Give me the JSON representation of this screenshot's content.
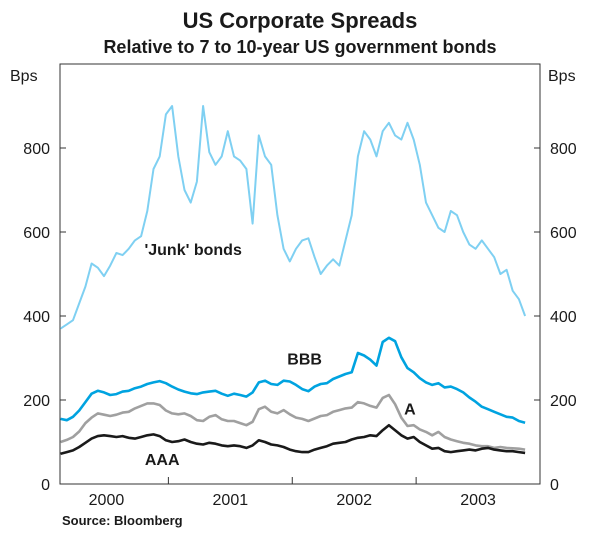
{
  "chart_data": {
    "type": "line",
    "title": "US Corporate Spreads",
    "subtitle": "Relative to 7 to 10-year US government bonds",
    "ylabel_left": "Bps",
    "ylabel_right": "Bps",
    "source": "Source: Bloomberg",
    "ylim": [
      0,
      1000
    ],
    "yticks": [
      0,
      200,
      400,
      600,
      800
    ],
    "xlim": [
      1999.625,
      2003.5
    ],
    "xticks": [
      {
        "label": "2000",
        "x": 2000.0
      },
      {
        "label": "2001",
        "x": 2001.0
      },
      {
        "label": "2002",
        "x": 2002.0
      },
      {
        "label": "2003",
        "x": 2003.0
      }
    ],
    "year_dividers": [
      1999.625,
      2000.5,
      2001.5,
      2002.5,
      2003.5
    ],
    "colors": {
      "junk": "#7fd0f2",
      "bbb": "#00a3e0",
      "a": "#a0a0a0",
      "aaa": "#1a1a1a",
      "frame": "#333333"
    },
    "series": [
      {
        "name": "'Junk' bonds",
        "key": "junk",
        "x": [
          1999.63,
          1999.68,
          1999.73,
          1999.78,
          1999.83,
          1999.88,
          1999.93,
          1999.98,
          2000.03,
          2000.08,
          2000.13,
          2000.18,
          2000.23,
          2000.28,
          2000.33,
          2000.38,
          2000.43,
          2000.48,
          2000.53,
          2000.58,
          2000.63,
          2000.68,
          2000.73,
          2000.78,
          2000.83,
          2000.88,
          2000.93,
          2000.98,
          2001.03,
          2001.08,
          2001.13,
          2001.18,
          2001.23,
          2001.28,
          2001.33,
          2001.38,
          2001.43,
          2001.48,
          2001.53,
          2001.58,
          2001.63,
          2001.68,
          2001.73,
          2001.78,
          2001.83,
          2001.88,
          2001.93,
          2001.98,
          2002.03,
          2002.08,
          2002.13,
          2002.18,
          2002.23,
          2002.28,
          2002.33,
          2002.38,
          2002.43,
          2002.48,
          2002.53,
          2002.58,
          2002.63,
          2002.68,
          2002.73,
          2002.78,
          2002.83,
          2002.88,
          2002.93,
          2002.98,
          2003.03,
          2003.08,
          2003.13,
          2003.18,
          2003.23,
          2003.28,
          2003.33,
          2003.38
        ],
        "values": [
          370,
          380,
          390,
          430,
          470,
          525,
          515,
          495,
          520,
          550,
          545,
          560,
          580,
          590,
          650,
          750,
          780,
          880,
          900,
          780,
          700,
          670,
          720,
          900,
          790,
          760,
          780,
          840,
          780,
          770,
          750,
          620,
          830,
          780,
          760,
          640,
          560,
          530,
          560,
          580,
          585,
          540,
          500,
          520,
          535,
          520,
          580,
          640,
          780,
          840,
          820,
          780,
          840,
          860,
          830,
          820,
          860,
          820,
          760,
          670,
          640,
          610,
          600,
          650,
          640,
          600,
          570,
          560,
          580,
          560,
          540,
          500,
          510,
          460,
          440,
          400
        ]
      },
      {
        "name": "BBB",
        "key": "bbb",
        "x": [
          1999.63,
          1999.68,
          1999.73,
          1999.78,
          1999.83,
          1999.88,
          1999.93,
          1999.98,
          2000.03,
          2000.08,
          2000.13,
          2000.18,
          2000.23,
          2000.28,
          2000.33,
          2000.38,
          2000.43,
          2000.48,
          2000.53,
          2000.58,
          2000.63,
          2000.68,
          2000.73,
          2000.78,
          2000.83,
          2000.88,
          2000.93,
          2000.98,
          2001.03,
          2001.08,
          2001.13,
          2001.18,
          2001.23,
          2001.28,
          2001.33,
          2001.38,
          2001.43,
          2001.48,
          2001.53,
          2001.58,
          2001.63,
          2001.68,
          2001.73,
          2001.78,
          2001.83,
          2001.88,
          2001.93,
          2001.98,
          2002.03,
          2002.08,
          2002.13,
          2002.18,
          2002.23,
          2002.28,
          2002.33,
          2002.38,
          2002.43,
          2002.48,
          2002.53,
          2002.58,
          2002.63,
          2002.68,
          2002.73,
          2002.78,
          2002.83,
          2002.88,
          2002.93,
          2002.98,
          2003.03,
          2003.08,
          2003.13,
          2003.18,
          2003.23,
          2003.28,
          2003.33,
          2003.38
        ],
        "values": [
          155,
          152,
          160,
          175,
          195,
          215,
          222,
          218,
          212,
          214,
          220,
          222,
          228,
          232,
          238,
          242,
          245,
          240,
          232,
          225,
          220,
          216,
          214,
          218,
          220,
          222,
          215,
          210,
          215,
          212,
          208,
          218,
          242,
          246,
          238,
          236,
          246,
          244,
          236,
          226,
          221,
          232,
          238,
          240,
          250,
          256,
          262,
          266,
          312,
          306,
          296,
          282,
          338,
          348,
          340,
          302,
          276,
          266,
          252,
          242,
          236,
          240,
          230,
          232,
          226,
          218,
          206,
          196,
          184,
          178,
          172,
          166,
          160,
          158,
          150,
          146
        ]
      },
      {
        "name": "A",
        "key": "a",
        "x": [
          1999.63,
          1999.68,
          1999.73,
          1999.78,
          1999.83,
          1999.88,
          1999.93,
          1999.98,
          2000.03,
          2000.08,
          2000.13,
          2000.18,
          2000.23,
          2000.28,
          2000.33,
          2000.38,
          2000.43,
          2000.48,
          2000.53,
          2000.58,
          2000.63,
          2000.68,
          2000.73,
          2000.78,
          2000.83,
          2000.88,
          2000.93,
          2000.98,
          2001.03,
          2001.08,
          2001.13,
          2001.18,
          2001.23,
          2001.28,
          2001.33,
          2001.38,
          2001.43,
          2001.48,
          2001.53,
          2001.58,
          2001.63,
          2001.68,
          2001.73,
          2001.78,
          2001.83,
          2001.88,
          2001.93,
          2001.98,
          2002.03,
          2002.08,
          2002.13,
          2002.18,
          2002.23,
          2002.28,
          2002.33,
          2002.38,
          2002.43,
          2002.48,
          2002.53,
          2002.58,
          2002.63,
          2002.68,
          2002.73,
          2002.78,
          2002.83,
          2002.88,
          2002.93,
          2002.98,
          2003.03,
          2003.08,
          2003.13,
          2003.18,
          2003.23,
          2003.28,
          2003.33,
          2003.38
        ],
        "values": [
          100,
          105,
          112,
          125,
          145,
          158,
          168,
          165,
          162,
          165,
          170,
          172,
          180,
          186,
          192,
          192,
          188,
          175,
          168,
          166,
          168,
          162,
          152,
          150,
          160,
          164,
          154,
          150,
          150,
          145,
          140,
          148,
          178,
          184,
          172,
          168,
          176,
          166,
          158,
          155,
          150,
          156,
          162,
          164,
          172,
          176,
          180,
          182,
          195,
          192,
          186,
          182,
          205,
          212,
          190,
          158,
          138,
          140,
          130,
          124,
          116,
          124,
          112,
          106,
          102,
          98,
          96,
          92,
          90,
          90,
          86,
          88,
          86,
          85,
          84,
          82
        ]
      },
      {
        "name": "AAA",
        "key": "aaa",
        "x": [
          1999.63,
          1999.68,
          1999.73,
          1999.78,
          1999.83,
          1999.88,
          1999.93,
          1999.98,
          2000.03,
          2000.08,
          2000.13,
          2000.18,
          2000.23,
          2000.28,
          2000.33,
          2000.38,
          2000.43,
          2000.48,
          2000.53,
          2000.58,
          2000.63,
          2000.68,
          2000.73,
          2000.78,
          2000.83,
          2000.88,
          2000.93,
          2000.98,
          2001.03,
          2001.08,
          2001.13,
          2001.18,
          2001.23,
          2001.28,
          2001.33,
          2001.38,
          2001.43,
          2001.48,
          2001.53,
          2001.58,
          2001.63,
          2001.68,
          2001.73,
          2001.78,
          2001.83,
          2001.88,
          2001.93,
          2001.98,
          2002.03,
          2002.08,
          2002.13,
          2002.18,
          2002.23,
          2002.28,
          2002.33,
          2002.38,
          2002.43,
          2002.48,
          2002.53,
          2002.58,
          2002.63,
          2002.68,
          2002.73,
          2002.78,
          2002.83,
          2002.88,
          2002.93,
          2002.98,
          2003.03,
          2003.08,
          2003.13,
          2003.18,
          2003.23,
          2003.28,
          2003.33,
          2003.38
        ],
        "values": [
          72,
          76,
          80,
          88,
          98,
          108,
          114,
          116,
          114,
          112,
          114,
          110,
          108,
          112,
          116,
          118,
          114,
          104,
          100,
          102,
          106,
          100,
          96,
          94,
          98,
          96,
          92,
          90,
          92,
          90,
          86,
          92,
          104,
          100,
          94,
          92,
          88,
          82,
          78,
          76,
          76,
          82,
          86,
          90,
          96,
          98,
          100,
          106,
          110,
          112,
          116,
          114,
          128,
          140,
          128,
          116,
          108,
          112,
          100,
          92,
          84,
          86,
          78,
          76,
          78,
          80,
          82,
          80,
          84,
          86,
          82,
          80,
          78,
          78,
          76,
          74
        ]
      }
    ],
    "annotations": [
      {
        "text": "'Junk' bonds",
        "key": "junk",
        "x": 2000.7,
        "y": 545
      },
      {
        "text": "BBB",
        "key": "bbb",
        "x": 2001.6,
        "y": 285
      },
      {
        "text": "A",
        "key": "a",
        "x": 2002.45,
        "y": 165
      },
      {
        "text": "AAA",
        "key": "aaa",
        "x": 2000.45,
        "y": 45
      }
    ]
  }
}
